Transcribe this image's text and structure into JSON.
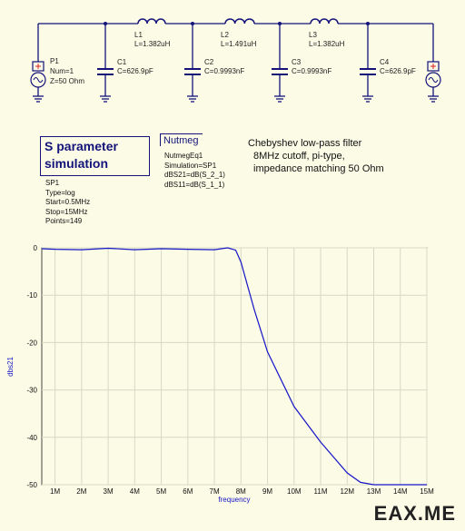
{
  "schematic": {
    "port1": {
      "name": "P1",
      "num": "Num=1",
      "z": "Z=50 Ohm"
    },
    "caps": [
      {
        "name": "C1",
        "value": "C=626.9pF"
      },
      {
        "name": "C2",
        "value": "C=0.9993nF"
      },
      {
        "name": "C3",
        "value": "C=0.9993nF"
      },
      {
        "name": "C4",
        "value": "C=626.9pF"
      }
    ],
    "inductors": [
      {
        "name": "L1",
        "value": "L=1.382uH"
      },
      {
        "name": "L2",
        "value": "L=1.491uH"
      },
      {
        "name": "L3",
        "value": "L=1.382uH"
      }
    ]
  },
  "sim": {
    "title_line1": "S parameter",
    "title_line2": "simulation",
    "props": [
      "SP1",
      "Type=log",
      "Start=0.5MHz",
      "Stop=15MHz",
      "Points=149"
    ]
  },
  "nutmeg": {
    "title": "Nutmeg",
    "props": [
      "NutmegEq1",
      "Simulation=SP1",
      "dBS21=dB(S_2_1)",
      "dBS11=dB(S_1_1)"
    ]
  },
  "note": [
    "Chebyshev low-pass filter",
    "8MHz cutoff, pi-type,",
    "impedance matching 50 Ohm"
  ],
  "chart_data": {
    "type": "line",
    "xlabel": "frequency",
    "ylabel": "dbs21",
    "xlim": [
      0.5,
      15
    ],
    "ylim": [
      -50,
      0
    ],
    "xticks": [
      "1M",
      "2M",
      "3M",
      "4M",
      "5M",
      "6M",
      "7M",
      "8M",
      "9M",
      "10M",
      "11M",
      "12M",
      "13M",
      "14M",
      "15M"
    ],
    "yticks": [
      "0",
      "-10",
      "-20",
      "-30",
      "-40",
      "-50"
    ],
    "grid": true,
    "series": [
      {
        "color": "#1515c8",
        "x": [
          0.5,
          1,
          2,
          3,
          4,
          5,
          6,
          7,
          7.5,
          7.8,
          8,
          8.5,
          9,
          10,
          11,
          12,
          12.5,
          13,
          14,
          15
        ],
        "y": [
          -0.2,
          -0.3,
          -0.4,
          -0.1,
          -0.4,
          -0.2,
          -0.3,
          -0.4,
          0,
          -0.5,
          -3,
          -13,
          -22,
          -33.5,
          -41,
          -47.5,
          -49.5,
          -50,
          -50,
          -50
        ]
      }
    ]
  },
  "watermark": "EAX.ME"
}
